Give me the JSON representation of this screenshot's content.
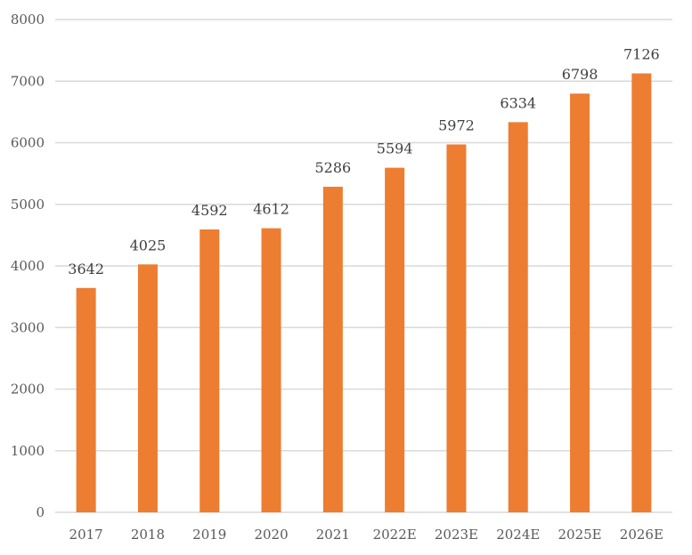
{
  "chart_data": {
    "type": "bar",
    "title": "",
    "xlabel": "",
    "ylabel": "",
    "categories": [
      "2017",
      "2018",
      "2019",
      "2020",
      "2021",
      "2022E",
      "2023E",
      "2024E",
      "2025E",
      "2026E"
    ],
    "series": [
      {
        "name": "Value",
        "values": [
          3642,
          4025,
          4592,
          4612,
          5286,
          5594,
          5972,
          6334,
          6798,
          7126
        ],
        "color": "#ED7D31"
      }
    ],
    "ylim": [
      0,
      8000
    ],
    "yticks": [
      0,
      1000,
      2000,
      3000,
      4000,
      5000,
      6000,
      7000,
      8000
    ],
    "grid": true,
    "gridColor": "#D9D9D9",
    "legend": "none",
    "dataLabels": true
  }
}
